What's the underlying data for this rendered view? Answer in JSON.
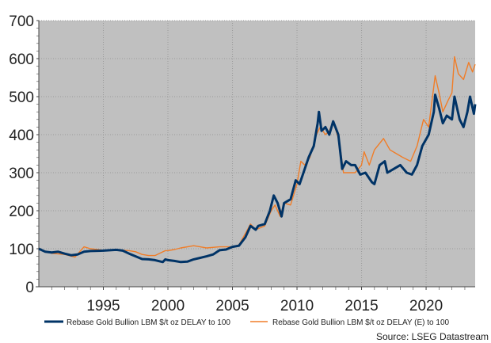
{
  "chart_data": {
    "type": "line",
    "title": "",
    "xlabel": "",
    "ylabel": "",
    "xlim": [
      1990,
      2023.8
    ],
    "ylim": [
      0,
      700
    ],
    "x_ticks": [
      "1995",
      "2000",
      "2005",
      "2010",
      "2015",
      "2020"
    ],
    "y_ticks": [
      "0",
      "100",
      "200",
      "300",
      "400",
      "500",
      "600",
      "700"
    ],
    "grid": true,
    "legend_position": "bottom",
    "source": "Source: LSEG Datastream",
    "background": "#c0c0c0",
    "series": [
      {
        "name": "Rebase Gold Bullion LBM $/t oz DELAY to 100",
        "color": "#003366",
        "points": [
          [
            1990,
            100
          ],
          [
            1990.5,
            92
          ],
          [
            1991,
            90
          ],
          [
            1991.5,
            92
          ],
          [
            1992,
            87
          ],
          [
            1992.5,
            83
          ],
          [
            1993,
            85
          ],
          [
            1993.5,
            92
          ],
          [
            1994,
            94
          ],
          [
            1995,
            95
          ],
          [
            1996,
            97
          ],
          [
            1996.5,
            95
          ],
          [
            1997,
            87
          ],
          [
            1997.5,
            80
          ],
          [
            1998,
            73
          ],
          [
            1998.5,
            72
          ],
          [
            1999,
            70
          ],
          [
            1999.6,
            65
          ],
          [
            1999.8,
            72
          ],
          [
            2000,
            70
          ],
          [
            2000.5,
            68
          ],
          [
            2001,
            65
          ],
          [
            2001.5,
            66
          ],
          [
            2002,
            72
          ],
          [
            2002.5,
            76
          ],
          [
            2003,
            80
          ],
          [
            2003.5,
            85
          ],
          [
            2004,
            96
          ],
          [
            2004.5,
            98
          ],
          [
            2005,
            105
          ],
          [
            2005.5,
            108
          ],
          [
            2006,
            130
          ],
          [
            2006.4,
            160
          ],
          [
            2006.8,
            150
          ],
          [
            2007,
            160
          ],
          [
            2007.5,
            165
          ],
          [
            2007.9,
            200
          ],
          [
            2008.2,
            240
          ],
          [
            2008.5,
            220
          ],
          [
            2008.8,
            185
          ],
          [
            2009,
            220
          ],
          [
            2009.5,
            230
          ],
          [
            2009.9,
            280
          ],
          [
            2010.2,
            270
          ],
          [
            2010.5,
            300
          ],
          [
            2010.9,
            340
          ],
          [
            2011.3,
            370
          ],
          [
            2011.6,
            430
          ],
          [
            2011.7,
            460
          ],
          [
            2011.9,
            410
          ],
          [
            2012.2,
            420
          ],
          [
            2012.5,
            400
          ],
          [
            2012.8,
            435
          ],
          [
            2013.2,
            400
          ],
          [
            2013.5,
            310
          ],
          [
            2013.8,
            330
          ],
          [
            2014.2,
            320
          ],
          [
            2014.5,
            320
          ],
          [
            2014.9,
            295
          ],
          [
            2015.3,
            300
          ],
          [
            2015.8,
            275
          ],
          [
            2016,
            270
          ],
          [
            2016.4,
            320
          ],
          [
            2016.8,
            330
          ],
          [
            2017,
            300
          ],
          [
            2017.5,
            310
          ],
          [
            2018,
            320
          ],
          [
            2018.5,
            300
          ],
          [
            2018.9,
            295
          ],
          [
            2019.3,
            320
          ],
          [
            2019.7,
            370
          ],
          [
            2020.2,
            400
          ],
          [
            2020.6,
            460
          ],
          [
            2020.7,
            505
          ],
          [
            2021,
            470
          ],
          [
            2021.3,
            430
          ],
          [
            2021.6,
            450
          ],
          [
            2022,
            440
          ],
          [
            2022.2,
            500
          ],
          [
            2022.6,
            440
          ],
          [
            2022.9,
            420
          ],
          [
            2023.2,
            460
          ],
          [
            2023.4,
            500
          ],
          [
            2023.7,
            455
          ],
          [
            2023.8,
            480
          ]
        ]
      },
      {
        "name": "Rebase Gold Bullion LBM $/t oz DELAY (E) to 100",
        "color": "#f07d28",
        "points": [
          [
            1990,
            100
          ],
          [
            1991,
            88
          ],
          [
            1992,
            85
          ],
          [
            1992.8,
            78
          ],
          [
            1993.5,
            105
          ],
          [
            1994,
            100
          ],
          [
            1995,
            96
          ],
          [
            1996,
            97
          ],
          [
            1997,
            95
          ],
          [
            1997.5,
            92
          ],
          [
            1998,
            85
          ],
          [
            1998.5,
            82
          ],
          [
            1999,
            82
          ],
          [
            1999.8,
            95
          ],
          [
            2000,
            95
          ],
          [
            2000.5,
            98
          ],
          [
            2001,
            102
          ],
          [
            2002,
            108
          ],
          [
            2002.5,
            105
          ],
          [
            2003,
            102
          ],
          [
            2004,
            105
          ],
          [
            2005,
            105
          ],
          [
            2005.5,
            110
          ],
          [
            2006,
            140
          ],
          [
            2006.4,
            165
          ],
          [
            2006.8,
            150
          ],
          [
            2007.5,
            160
          ],
          [
            2008,
            200
          ],
          [
            2008.3,
            215
          ],
          [
            2008.7,
            185
          ],
          [
            2009,
            220
          ],
          [
            2009.5,
            215
          ],
          [
            2010,
            270
          ],
          [
            2010.3,
            330
          ],
          [
            2010.6,
            320
          ],
          [
            2011,
            340
          ],
          [
            2011.5,
            400
          ],
          [
            2011.8,
            420
          ],
          [
            2012.2,
            400
          ],
          [
            2012.5,
            410
          ],
          [
            2012.8,
            435
          ],
          [
            2013.3,
            380
          ],
          [
            2013.6,
            300
          ],
          [
            2014,
            300
          ],
          [
            2014.5,
            300
          ],
          [
            2015,
            320
          ],
          [
            2015.2,
            355
          ],
          [
            2015.6,
            320
          ],
          [
            2016,
            360
          ],
          [
            2016.7,
            390
          ],
          [
            2017.2,
            360
          ],
          [
            2017.7,
            350
          ],
          [
            2018.2,
            340
          ],
          [
            2018.8,
            330
          ],
          [
            2019.3,
            370
          ],
          [
            2019.8,
            440
          ],
          [
            2020.2,
            420
          ],
          [
            2020.7,
            555
          ],
          [
            2021,
            510
          ],
          [
            2021.3,
            460
          ],
          [
            2021.7,
            490
          ],
          [
            2022,
            510
          ],
          [
            2022.2,
            605
          ],
          [
            2022.5,
            560
          ],
          [
            2022.9,
            545
          ],
          [
            2023.3,
            590
          ],
          [
            2023.6,
            565
          ],
          [
            2023.8,
            585
          ]
        ]
      }
    ]
  }
}
